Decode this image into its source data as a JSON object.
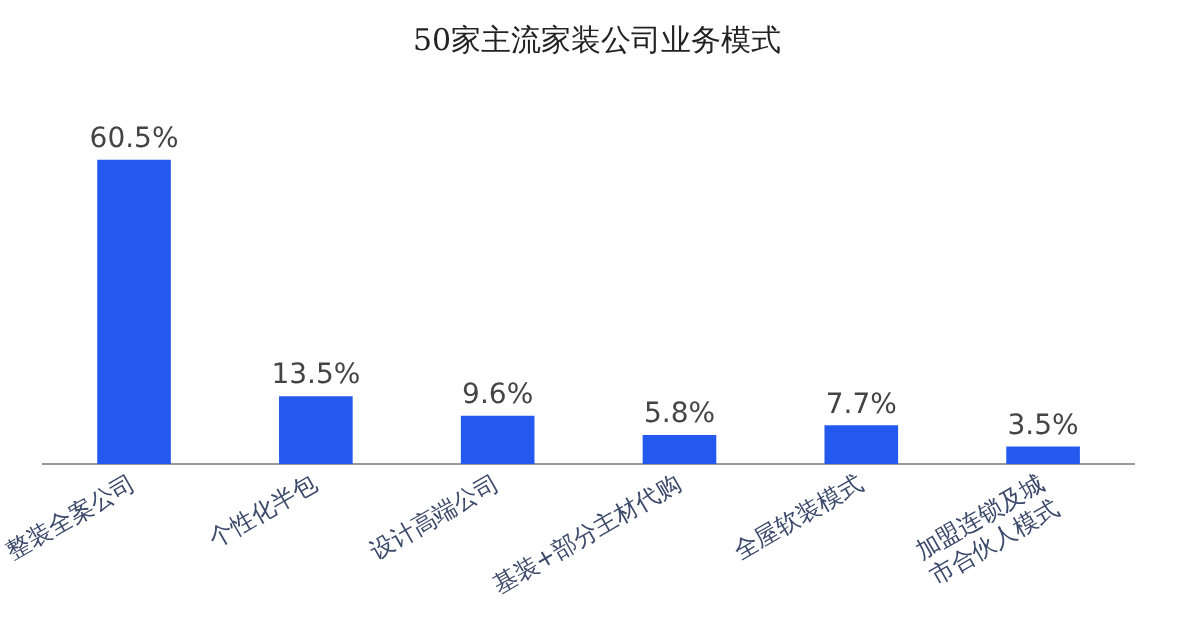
{
  "chart_data": {
    "type": "bar",
    "title": "50家主流家装公司业务模式",
    "categories": [
      "整装全案公司",
      "个性化半包",
      "设计高端公司",
      "基装+部分主材代购",
      "全屋软装模式",
      "加盟连锁及城市合伙人模式"
    ],
    "values": [
      60.5,
      13.5,
      9.6,
      5.8,
      7.7,
      3.5
    ],
    "value_labels": [
      "60.5%",
      "13.5%",
      "9.6%",
      "5.8%",
      "7.7%",
      "3.5%"
    ],
    "color": "#2459f0",
    "grid": false,
    "legend": false,
    "tick_labels": "x"
  }
}
